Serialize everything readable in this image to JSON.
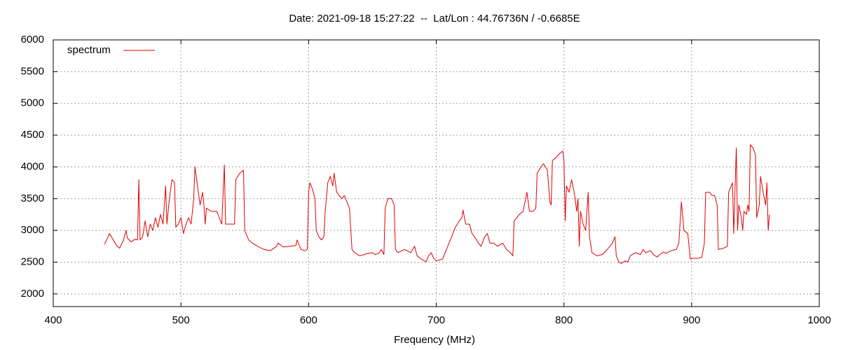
{
  "chart_data": {
    "type": "line",
    "title": "Date: 2021-09-18 15:27:22  --  Lat/Lon : 44.76736N / -0.6685E",
    "x_label": "Frequency (MHz)",
    "xlim": [
      400,
      1000
    ],
    "xticks": [
      400,
      500,
      600,
      700,
      800,
      900,
      1000
    ],
    "ylim": [
      1800,
      6000
    ],
    "yticks": [
      2000,
      2500,
      3000,
      3500,
      4000,
      4500,
      5000,
      5500,
      6000
    ],
    "grid": true,
    "legend": "top-left",
    "x": [
      440,
      443,
      444,
      447,
      450,
      452,
      455,
      457,
      458,
      461,
      464,
      466,
      467,
      468,
      470,
      472,
      474,
      476,
      478,
      480,
      482,
      484,
      486,
      488,
      489,
      491,
      493,
      495,
      496,
      498,
      500,
      502,
      504,
      506,
      508,
      510,
      511,
      513,
      515,
      517,
      518,
      519,
      520,
      524,
      528,
      530,
      532,
      534,
      535,
      540,
      542,
      543,
      546,
      549,
      550,
      553,
      556,
      560,
      565,
      570,
      575,
      576,
      580,
      585,
      590,
      591,
      594,
      597,
      599,
      600,
      601,
      603,
      605,
      606,
      608,
      610,
      612,
      613,
      615,
      617,
      619,
      620,
      622,
      624,
      626,
      628,
      630,
      632,
      634,
      636,
      640,
      645,
      650,
      652,
      655,
      657,
      659,
      660,
      662,
      665,
      667,
      668,
      670,
      675,
      680,
      683,
      685,
      688,
      690,
      692,
      694,
      696,
      698,
      700,
      705,
      708,
      712,
      715,
      718,
      720,
      721,
      723,
      726,
      728,
      730,
      733,
      735,
      738,
      740,
      742,
      745,
      748,
      752,
      755,
      758,
      760,
      761,
      765,
      768,
      770,
      771,
      773,
      776,
      778,
      779,
      782,
      784,
      787,
      789,
      790,
      791,
      794,
      796,
      799,
      800,
      801,
      802,
      804,
      806,
      808,
      810,
      811,
      812,
      813,
      815,
      817,
      819,
      820,
      822,
      826,
      830,
      834,
      838,
      840,
      841,
      843,
      845,
      848,
      850,
      852,
      856,
      860,
      862,
      864,
      868,
      870,
      873,
      875,
      878,
      880,
      884,
      888,
      890,
      892,
      894,
      897,
      899,
      901,
      905,
      908,
      910,
      911,
      914,
      916,
      918,
      920,
      921,
      925,
      928,
      929,
      932,
      933,
      935,
      936,
      937,
      939,
      940,
      941,
      943,
      944,
      945,
      946,
      948,
      950,
      951,
      953,
      954,
      956,
      958,
      959,
      960,
      961
    ],
    "series": [
      {
        "name": "spectrum",
        "color": "#e00000",
        "values": [
          2780,
          2900,
          2950,
          2850,
          2750,
          2720,
          2850,
          3000,
          2880,
          2820,
          2860,
          2850,
          3800,
          2850,
          2900,
          3150,
          2900,
          3100,
          3000,
          3200,
          3050,
          3250,
          3100,
          3700,
          3100,
          3500,
          3800,
          3750,
          3050,
          3100,
          3200,
          2950,
          3100,
          3200,
          3100,
          3500,
          4000,
          3700,
          3400,
          3600,
          3400,
          3100,
          3350,
          3300,
          3300,
          3200,
          3100,
          4030,
          3100,
          3100,
          3100,
          3800,
          3900,
          3950,
          3000,
          2850,
          2800,
          2750,
          2700,
          2680,
          2750,
          2800,
          2740,
          2750,
          2760,
          2850,
          2700,
          2680,
          2700,
          3600,
          3750,
          3650,
          3500,
          3000,
          2900,
          2850,
          2900,
          3300,
          3750,
          3850,
          3700,
          3900,
          3600,
          3550,
          3500,
          3550,
          3450,
          3350,
          2700,
          2650,
          2600,
          2630,
          2650,
          2620,
          2640,
          2700,
          2620,
          3350,
          3500,
          3500,
          3400,
          2700,
          2650,
          2700,
          2650,
          2750,
          2600,
          2550,
          2530,
          2500,
          2600,
          2650,
          2560,
          2520,
          2550,
          2700,
          2900,
          3050,
          3150,
          3200,
          3320,
          3100,
          3100,
          2950,
          2900,
          2800,
          2750,
          2900,
          2950,
          2800,
          2800,
          2750,
          2800,
          2700,
          2650,
          2600,
          3150,
          3250,
          3300,
          3500,
          3600,
          3300,
          3300,
          3350,
          3900,
          4000,
          4050,
          3950,
          3450,
          3400,
          4100,
          4150,
          4200,
          4250,
          4100,
          3150,
          3700,
          3600,
          3800,
          3600,
          3300,
          3500,
          2750,
          3300,
          3100,
          3000,
          3600,
          2900,
          2650,
          2600,
          2620,
          2700,
          2800,
          2900,
          2600,
          2500,
          2480,
          2520,
          2500,
          2600,
          2650,
          2620,
          2700,
          2650,
          2680,
          2620,
          2580,
          2620,
          2660,
          2640,
          2680,
          2700,
          2800,
          3450,
          3000,
          2950,
          2550,
          2560,
          2560,
          2580,
          2800,
          3600,
          3600,
          3550,
          3550,
          3400,
          2700,
          2720,
          2750,
          3600,
          3750,
          2950,
          4300,
          3000,
          3400,
          3200,
          3000,
          3300,
          3250,
          3400,
          3300,
          4350,
          4300,
          4200,
          3200,
          3400,
          3850,
          3600,
          3400,
          3750,
          3000,
          3250
        ]
      }
    ]
  }
}
